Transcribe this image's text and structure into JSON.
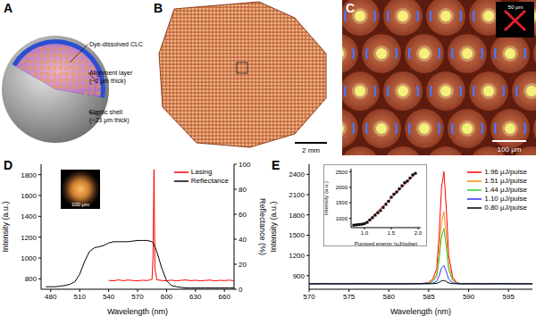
{
  "panels": {
    "A": {
      "panel_label": "A",
      "labels": [
        [
          "Dye-dissolved CLC"
        ],
        [
          "Alignment layer",
          "(~2 μm thick)"
        ],
        [
          "Elastic shell",
          "(~23 μm thick)"
        ]
      ]
    },
    "B": {
      "panel_label": "B",
      "scale_bar": "2 mm"
    },
    "C": {
      "panel_label": "C",
      "scale_bar": "100 μm",
      "inset_scale_bar": "50 μm"
    }
  },
  "chart_data": [
    {
      "panel_label": "D",
      "type": "line",
      "x_label": "Wavelength (nm)",
      "y_label": "Intensity (a.u.)",
      "y2_label": "Reflectance (%)",
      "x": [
        475,
        480,
        485,
        490,
        495,
        500,
        505,
        510,
        515,
        520,
        525,
        530,
        535,
        540,
        545,
        550,
        555,
        560,
        565,
        570,
        575,
        580,
        585,
        586,
        587,
        588,
        590,
        595,
        600,
        605,
        610,
        615,
        620,
        625,
        630,
        635,
        640,
        645,
        650,
        655,
        660,
        665,
        670
      ],
      "xlim": [
        470,
        670
      ],
      "xticks": [
        480,
        510,
        540,
        570,
        600,
        630,
        660
      ],
      "ylim": [
        700,
        1900
      ],
      "yticks": [
        800,
        1000,
        1200,
        1400,
        1600,
        1800
      ],
      "y2lim": [
        0,
        100
      ],
      "y2ticks": [
        0,
        20,
        40,
        60,
        80,
        100
      ],
      "legend": "upper right",
      "inset_scale_bar": "100 μm",
      "series": [
        {
          "name": "Lasing",
          "color": "#ff0000",
          "values": [
            null,
            null,
            null,
            null,
            null,
            null,
            null,
            null,
            null,
            null,
            null,
            null,
            null,
            785,
            780,
            790,
            782,
            788,
            784,
            780,
            786,
            783,
            795,
            1000,
            1850,
            900,
            790,
            784,
            781,
            787,
            780,
            785,
            789,
            782,
            786,
            781,
            784,
            788,
            780,
            785,
            783,
            787,
            782
          ]
        },
        {
          "name": "Reflectance",
          "color": "#000000",
          "axis": "y2",
          "values": [
            2,
            2,
            2,
            2.5,
            3,
            4,
            6,
            12,
            22,
            30,
            33,
            34,
            35,
            37,
            38,
            38,
            38,
            38,
            38.5,
            39,
            39,
            39,
            38,
            37,
            36,
            34,
            30,
            17,
            7,
            3,
            2,
            1.5,
            1,
            1,
            1,
            1,
            1,
            1,
            1,
            1,
            1,
            1,
            1
          ]
        }
      ]
    },
    {
      "panel_label": "E",
      "type": "line",
      "x_label": "Wavelength (nm)",
      "y_label": "Intensity (a.u.)",
      "x": [
        570,
        572,
        574,
        576,
        578,
        580,
        582,
        584,
        585,
        585.5,
        586,
        586.3,
        586.6,
        586.9,
        587.2,
        587.5,
        588,
        588.5,
        589,
        590,
        592,
        594,
        596,
        598
      ],
      "xlim": [
        570,
        598
      ],
      "xticks": [
        570,
        575,
        580,
        585,
        590,
        595
      ],
      "ylim": [
        700,
        2550
      ],
      "yticks": [
        900,
        1200,
        1500,
        1800,
        2100,
        2400
      ],
      "legend": "upper right",
      "series": [
        {
          "name": "1.96 μJ/pulse",
          "color": "#ff0000",
          "values": [
            781,
            779,
            783,
            780,
            778,
            782,
            780,
            784,
            800,
            850,
            1000,
            1500,
            2200,
            2440,
            1900,
            1200,
            880,
            800,
            785,
            781,
            779,
            783,
            780,
            782
          ]
        },
        {
          "name": "1.51 μJ/pulse",
          "color": "#ff8c00",
          "values": [
            779,
            782,
            780,
            778,
            783,
            780,
            781,
            779,
            793,
            825,
            922,
            1244,
            1696,
            1850,
            1502,
            1051,
            845,
            793,
            782,
            780,
            783,
            779,
            781,
            778
          ]
        },
        {
          "name": "1.44 μJ/pulse",
          "color": "#33cc33",
          "values": [
            782,
            780,
            778,
            781,
            779,
            783,
            780,
            782,
            790,
            815,
            889,
            1136,
            1481,
            1600,
            1333,
            987,
            829,
            790,
            780,
            783,
            781,
            778,
            782,
            780
          ]
        },
        {
          "name": "1.10 μJ/pulse",
          "color": "#3333ff",
          "values": [
            780,
            783,
            781,
            779,
            782,
            778,
            783,
            780,
            783,
            791,
            816,
            897,
            1011,
            1050,
            963,
            848,
            796,
            783,
            781,
            779,
            782,
            780,
            778,
            783
          ]
        },
        {
          "name": "0.80 μJ/pulse",
          "color": "#000000",
          "values": [
            778,
            781,
            779,
            782,
            780,
            781,
            779,
            783,
            781,
            782,
            787,
            802,
            823,
            830,
            814,
            793,
            783,
            781,
            779,
            782,
            780,
            783,
            781,
            779
          ]
        }
      ]
    },
    {
      "type": "scatter",
      "x_label": "Pumped energy (μJ/pulse)",
      "y_label": "Intensity (a.u.)",
      "xlim": [
        0.75,
        2.05
      ],
      "xticks": [
        {
          "value": 1,
          "label": "1.0"
        },
        {
          "value": 1.5,
          "label": "1.5"
        },
        {
          "value": 2,
          "label": "2.0"
        }
      ],
      "ylim": [
        700,
        2600
      ],
      "yticks": [
        1000,
        1500,
        2000,
        2500
      ],
      "series": [
        {
          "type": "scatter",
          "color": "#000000",
          "marker": "square",
          "x": [
            0.8,
            0.85,
            0.9,
            0.95,
            1.0,
            1.05,
            1.1,
            1.15,
            1.2,
            1.25,
            1.3,
            1.35,
            1.4,
            1.45,
            1.5,
            1.55,
            1.6,
            1.65,
            1.7,
            1.75,
            1.8,
            1.85,
            1.9,
            1.95
          ],
          "values": [
            780,
            790,
            800,
            810,
            830,
            870,
            950,
            1020,
            1100,
            1180,
            1250,
            1350,
            1450,
            1550,
            1680,
            1780,
            1850,
            1950,
            2050,
            2150,
            2200,
            2300,
            2400,
            2450
          ]
        },
        {
          "type": "line",
          "color": "#ff0000",
          "x": [
            0.8,
            1.0,
            1.96
          ],
          "values": [
            790,
            800,
            2450
          ]
        }
      ]
    }
  ]
}
